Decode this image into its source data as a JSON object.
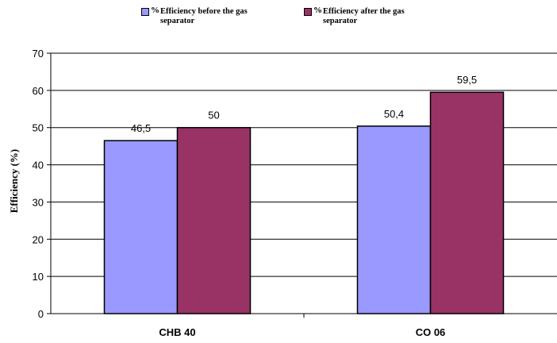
{
  "chart_data": {
    "type": "bar",
    "categories": [
      "CHB 40",
      "CO 06"
    ],
    "series": [
      {
        "name": "Efficiency before the gas separator",
        "legend_prefix": "%",
        "color": "#9999ff",
        "values": [
          46.5,
          50.4
        ],
        "value_labels": [
          "46,5",
          "50,4"
        ]
      },
      {
        "name": "Efficiency after the gas separator",
        "legend_prefix": "%",
        "color": "#993366",
        "values": [
          50,
          59.5
        ],
        "value_labels": [
          "50",
          "59,5"
        ]
      }
    ],
    "xlabel": "",
    "ylabel": "Efficiency (%)",
    "ylim": [
      0,
      70
    ],
    "yticks": [
      0,
      10,
      20,
      30,
      40,
      50,
      60,
      70
    ],
    "grid": true,
    "legend_position": "top"
  }
}
